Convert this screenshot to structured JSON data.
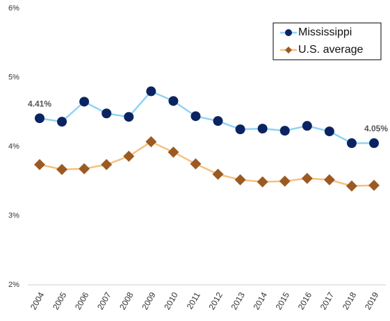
{
  "chart_data": {
    "type": "line",
    "categories": [
      "2004",
      "2005",
      "2006",
      "2007",
      "2008",
      "2009",
      "2010",
      "2011",
      "2012",
      "2013",
      "2014",
      "2015",
      "2016",
      "2017",
      "2018",
      "2019"
    ],
    "series": [
      {
        "name": "Mississippi",
        "color": "#0b2461",
        "line_color": "#8fd3f5",
        "marker": "circle",
        "values": [
          4.41,
          4.36,
          4.65,
          4.48,
          4.43,
          4.8,
          4.66,
          4.44,
          4.37,
          4.25,
          4.26,
          4.23,
          4.3,
          4.22,
          4.05,
          4.05
        ],
        "value_labels": [
          "4.41%",
          null,
          null,
          null,
          null,
          null,
          null,
          null,
          null,
          null,
          null,
          null,
          null,
          null,
          null,
          "4.05%"
        ]
      },
      {
        "name": "U.S. average",
        "color": "#9c5a22",
        "line_color": "#f7c07e",
        "marker": "diamond",
        "values": [
          3.74,
          3.67,
          3.68,
          3.74,
          3.86,
          4.07,
          3.92,
          3.75,
          3.6,
          3.52,
          3.49,
          3.5,
          3.54,
          3.52,
          3.43,
          3.44
        ]
      }
    ],
    "ylim": [
      2,
      6
    ],
    "yticks": [
      {
        "value": 2,
        "label": "2%"
      },
      {
        "value": 3,
        "label": "3%"
      },
      {
        "value": 4,
        "label": "4%"
      },
      {
        "value": 5,
        "label": "5%"
      },
      {
        "value": 6,
        "label": "6%"
      }
    ],
    "grid": false,
    "legend": "upper right"
  }
}
